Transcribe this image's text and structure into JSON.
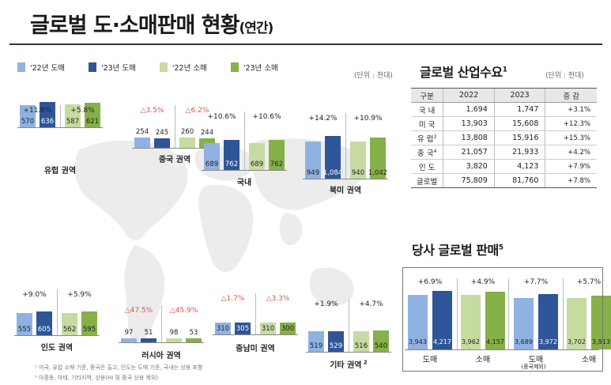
{
  "title": {
    "main": "글로벌 도·소매판매 현황",
    "sub": "(연간)"
  },
  "legend": [
    {
      "label": "'22년 도매",
      "color": "#8fb2e2"
    },
    {
      "label": "'23년 도매",
      "color": "#2e5597"
    },
    {
      "label": "'22년 소매",
      "color": "#c6dba0"
    },
    {
      "label": "'23년 소매",
      "color": "#86b048"
    }
  ],
  "units": {
    "map": "(단위 : 천대)",
    "demand": "(단위 : 천대)"
  },
  "chart_data": [
    {
      "type": "bar",
      "region": "유럽 권역",
      "series": [
        "'22년 도매",
        "'23년 도매",
        "'22년 소매",
        "'23년 소매"
      ],
      "values": [
        570,
        636,
        587,
        621
      ],
      "growth": {
        "wholesale": "+11.6%",
        "retail": "+5.8%"
      }
    },
    {
      "type": "bar",
      "region": "중국 권역",
      "series": [
        "'22년 도매",
        "'23년 도매",
        "'22년 소매",
        "'23년 소매"
      ],
      "values": [
        254,
        245,
        260,
        244
      ],
      "growth": {
        "wholesale": "△3.5%",
        "retail": "△6.2%"
      }
    },
    {
      "type": "bar",
      "region": "국내",
      "series": [
        "'22년 도매",
        "'23년 도매",
        "'22년 소매",
        "'23년 소매"
      ],
      "values": [
        689,
        762,
        689,
        762
      ],
      "growth": {
        "wholesale": "+10.6%",
        "retail": "+10.6%"
      }
    },
    {
      "type": "bar",
      "region": "북미 권역",
      "series": [
        "'22년 도매",
        "'23년 도매",
        "'22년 소매",
        "'23년 소매"
      ],
      "values": [
        949,
        1084,
        940,
        1042
      ],
      "growth": {
        "wholesale": "+14.2%",
        "retail": "+10.9%"
      }
    },
    {
      "type": "bar",
      "region": "인도 권역",
      "series": [
        "'22년 도매",
        "'23년 도매",
        "'22년 소매",
        "'23년 소매"
      ],
      "values": [
        555,
        605,
        562,
        595
      ],
      "growth": {
        "wholesale": "+9.0%",
        "retail": "+5.9%"
      }
    },
    {
      "type": "bar",
      "region": "러시아 권역",
      "series": [
        "'22년 도매",
        "'23년 도매",
        "'22년 소매",
        "'23년 소매"
      ],
      "values": [
        97,
        51,
        98,
        53
      ],
      "growth": {
        "wholesale": "△47.5%",
        "retail": "△45.9%"
      }
    },
    {
      "type": "bar",
      "region": "중남미 권역",
      "series": [
        "'22년 도매",
        "'23년 도매",
        "'22년 소매",
        "'23년 소매"
      ],
      "values": [
        310,
        305,
        310,
        300
      ],
      "growth": {
        "wholesale": "△1.7%",
        "retail": "△3.3%"
      }
    },
    {
      "type": "bar",
      "region": "기타 권역",
      "region_sup": "2",
      "series": [
        "'22년 도매",
        "'23년 도매",
        "'22년 소매",
        "'23년 소매"
      ],
      "values": [
        519,
        529,
        516,
        540
      ],
      "growth": {
        "wholesale": "+1.9%",
        "retail": "+4.7%"
      }
    },
    {
      "type": "bar",
      "title": "당사 글로벌 판매",
      "title_sup": "5",
      "series": [
        "'22년 도매",
        "'23년 도매",
        "'22년 소매",
        "'23년 소매",
        "'22년 도매",
        "'23년 도매",
        "'22년 소매",
        "'23년 소매"
      ],
      "values": [
        3943,
        4217,
        3962,
        4157,
        3689,
        3972,
        3702,
        3913
      ],
      "growth": [
        "+6.9%",
        "+4.9%",
        "+7.7%",
        "+5.7%"
      ],
      "groups": [
        "도매",
        "소매",
        "도매",
        "소매"
      ],
      "group_note": "(중국제외)"
    },
    {
      "type": "table",
      "title": "글로벌 산업수요",
      "title_sup": "1",
      "columns": [
        "구분",
        "2022",
        "2023",
        "증 감"
      ],
      "rows": [
        {
          "name": "국 내",
          "sup": "",
          "y2022": "1,694",
          "y2023": "1,747",
          "chg": "+3.1%"
        },
        {
          "name": "미 국",
          "sup": "",
          "y2022": "13,903",
          "y2023": "15,608",
          "chg": "+12.3%"
        },
        {
          "name": "유 럽",
          "sup": "3",
          "y2022": "13,808",
          "y2023": "15,916",
          "chg": "+15.3%"
        },
        {
          "name": "중 국",
          "sup": "4",
          "y2022": "21,057",
          "y2023": "21,933",
          "chg": "+4.2%"
        },
        {
          "name": "인 도",
          "sup": "",
          "y2022": "3,820",
          "y2023": "4,123",
          "chg": "+7.9%"
        },
        {
          "name": "글로벌",
          "sup": "",
          "y2022": "75,809",
          "y2023": "81,760",
          "chg": "+7.8%"
        }
      ]
    }
  ],
  "footnotes": [
    "¹ 미국, 유럽 소매 기준, 중국은 출고, 인도는 도매 기준, 국내는 상용 포함",
    "² 아중동, 아태, 기타지역, 상용(HI 및 중국 상용 제외)"
  ]
}
